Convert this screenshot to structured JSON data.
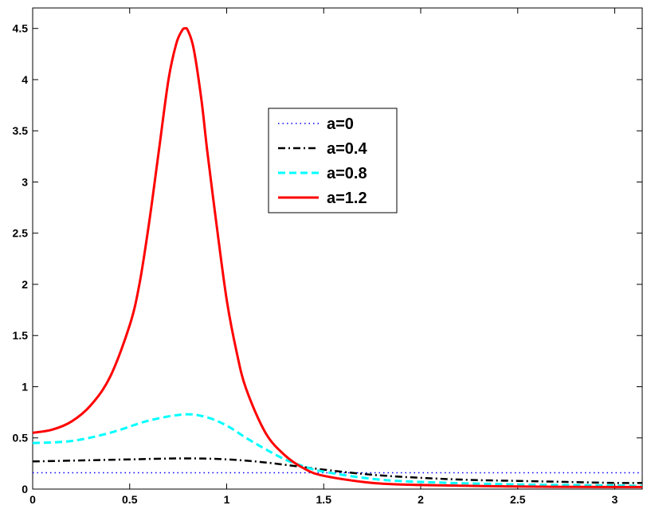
{
  "chart_data": {
    "type": "line",
    "title": "",
    "xlabel": "",
    "ylabel": "",
    "xlim": [
      0,
      3.1416
    ],
    "ylim": [
      0,
      4.7
    ],
    "xticks": [
      0,
      0.5,
      1,
      1.5,
      2,
      2.5,
      3
    ],
    "xtick_labels": [
      "0",
      "0.5",
      "1",
      "1.5",
      "2",
      "2.5",
      "3"
    ],
    "yticks": [
      0,
      0.5,
      1,
      1.5,
      2,
      2.5,
      3,
      3.5,
      4,
      4.5
    ],
    "ytick_labels": [
      "0",
      "0.5",
      "1",
      "1.5",
      "2",
      "2.5",
      "3",
      "3.5",
      "4",
      "4.5"
    ],
    "grid": false,
    "legend_position": "upper-center",
    "series": [
      {
        "name": "a=0",
        "color": "#0000ff",
        "style": "dotted",
        "x": [
          0,
          0.25,
          0.5,
          0.75,
          1.0,
          1.25,
          1.5,
          1.75,
          2.0,
          2.25,
          2.5,
          2.75,
          3.0,
          3.1416
        ],
        "y": [
          0.16,
          0.16,
          0.16,
          0.16,
          0.16,
          0.16,
          0.16,
          0.16,
          0.16,
          0.16,
          0.16,
          0.16,
          0.16,
          0.16
        ]
      },
      {
        "name": "a=0.4",
        "color": "#000000",
        "style": "dashdot",
        "x": [
          0,
          0.25,
          0.5,
          0.785,
          1.0,
          1.2,
          1.5,
          1.75,
          2.0,
          2.25,
          2.5,
          2.75,
          3.0,
          3.1416
        ],
        "y": [
          0.27,
          0.28,
          0.29,
          0.3,
          0.29,
          0.26,
          0.19,
          0.14,
          0.11,
          0.09,
          0.08,
          0.07,
          0.06,
          0.06
        ]
      },
      {
        "name": "a=0.8",
        "color": "#00ffff",
        "style": "dashed",
        "x": [
          0,
          0.2,
          0.4,
          0.6,
          0.785,
          0.9,
          1.0,
          1.1,
          1.2,
          1.3,
          1.4,
          1.5,
          1.75,
          2.0,
          2.5,
          3.0,
          3.1416
        ],
        "y": [
          0.45,
          0.47,
          0.55,
          0.67,
          0.73,
          0.7,
          0.62,
          0.5,
          0.39,
          0.29,
          0.22,
          0.17,
          0.1,
          0.07,
          0.045,
          0.035,
          0.03
        ]
      },
      {
        "name": "a=1.2",
        "color": "#ff0000",
        "style": "solid",
        "x": [
          0,
          0.1,
          0.2,
          0.3,
          0.4,
          0.5,
          0.55,
          0.6,
          0.65,
          0.7,
          0.74,
          0.77,
          0.785,
          0.8,
          0.83,
          0.87,
          0.9,
          0.95,
          1.0,
          1.05,
          1.1,
          1.2,
          1.3,
          1.4,
          1.5,
          1.75,
          2.0,
          2.5,
          3.0,
          3.1416
        ],
        "y": [
          0.55,
          0.58,
          0.66,
          0.82,
          1.1,
          1.6,
          2.0,
          2.6,
          3.3,
          4.0,
          4.35,
          4.48,
          4.5,
          4.48,
          4.3,
          3.8,
          3.3,
          2.55,
          1.85,
          1.35,
          0.98,
          0.55,
          0.33,
          0.2,
          0.13,
          0.06,
          0.04,
          0.025,
          0.02,
          0.02
        ]
      }
    ]
  }
}
